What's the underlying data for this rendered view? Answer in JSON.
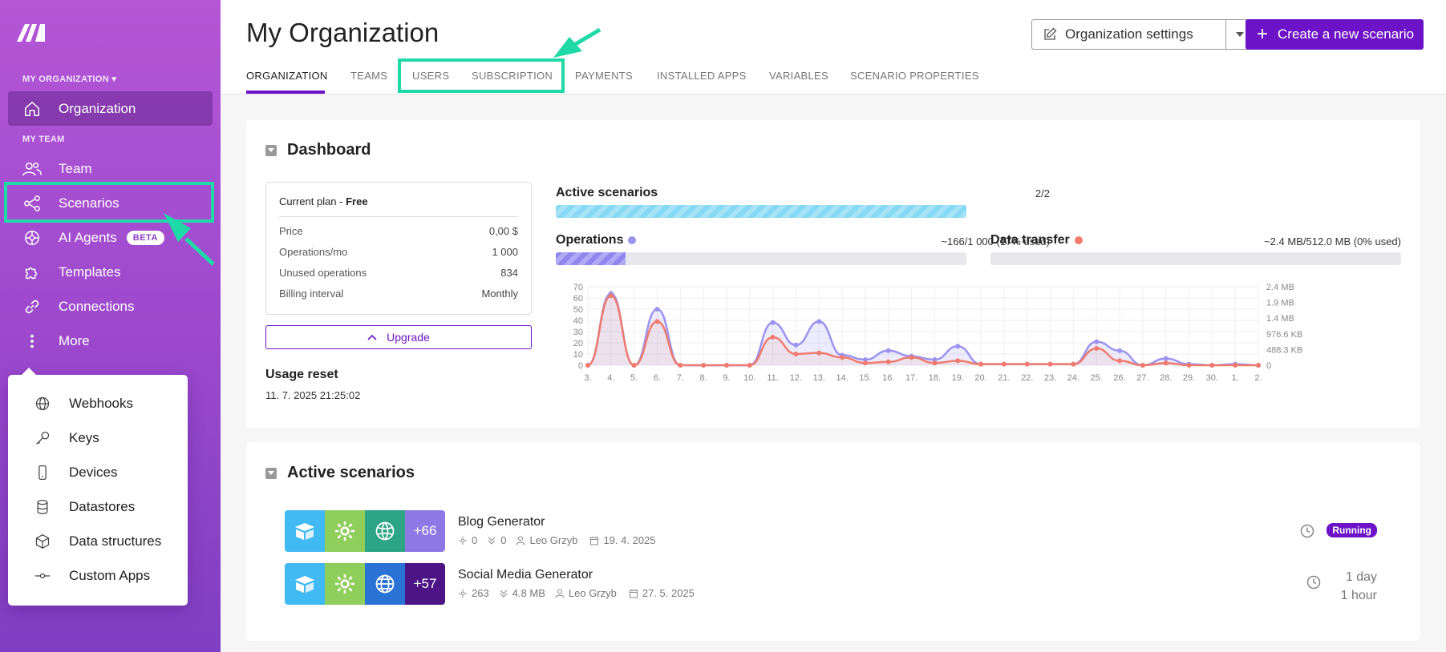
{
  "sidebar": {
    "org_label": "MY ORGANIZATION",
    "team_label": "MY TEAM",
    "items": [
      {
        "label": "Organization"
      },
      {
        "label": "Team"
      },
      {
        "label": "Scenarios"
      },
      {
        "label": "AI Agents",
        "badge": "BETA"
      },
      {
        "label": "Templates"
      },
      {
        "label": "Connections"
      },
      {
        "label": "More"
      }
    ],
    "more_menu": [
      {
        "label": "Webhooks"
      },
      {
        "label": "Keys"
      },
      {
        "label": "Devices"
      },
      {
        "label": "Datastores"
      },
      {
        "label": "Data structures"
      },
      {
        "label": "Custom Apps"
      }
    ]
  },
  "header": {
    "title": "My Organization",
    "settings_label": "Organization settings",
    "create_label": "Create a new scenario",
    "tabs": [
      "ORGANIZATION",
      "TEAMS",
      "USERS",
      "SUBSCRIPTION",
      "PAYMENTS",
      "INSTALLED APPS",
      "VARIABLES",
      "SCENARIO PROPERTIES"
    ]
  },
  "dashboard": {
    "title": "Dashboard",
    "plan": {
      "current_label": "Current plan - ",
      "current_value": "Free",
      "rows": [
        {
          "label": "Price",
          "value": "0,00 $"
        },
        {
          "label": "Operations/mo",
          "value": "1 000"
        },
        {
          "label": "Unused operations",
          "value": "834"
        },
        {
          "label": "Billing interval",
          "value": "Monthly"
        }
      ]
    },
    "upgrade_label": "Upgrade",
    "usage_reset_label": "Usage reset",
    "usage_reset_value": "11. 7. 2025 21:25:02",
    "active_scenarios": {
      "label": "Active scenarios",
      "value": "2/2",
      "fraction": 1.0
    },
    "operations": {
      "label": "Operations",
      "value": "~166/1 000 (17% used)",
      "fraction": 0.17
    },
    "data_transfer": {
      "label": "Data transfer",
      "value": "~2.4 MB/512.0 MB (0% used)",
      "fraction": 0.0
    },
    "colors": {
      "accent": "#6d13c7",
      "ops": "#9b93f0",
      "data": "#f07b6e",
      "active": "#7fd6f2"
    }
  },
  "chart_data": {
    "type": "line",
    "x": [
      "3.",
      "4.",
      "5.",
      "6.",
      "7.",
      "8.",
      "9.",
      "10.",
      "11.",
      "12.",
      "13.",
      "14.",
      "15.",
      "16.",
      "17.",
      "18.",
      "19.",
      "20.",
      "21.",
      "22.",
      "23.",
      "24.",
      "25.",
      "26.",
      "27.",
      "28.",
      "29.",
      "30.",
      "1.",
      "2."
    ],
    "y_left_ticks": [
      "70",
      "60",
      "50",
      "40",
      "30",
      "20",
      "10",
      "0"
    ],
    "y_right_ticks": [
      "2.4 MB",
      "1.9 MB",
      "1.4 MB",
      "976.6 KB",
      "488.3 KB",
      "0"
    ],
    "ylim": [
      0,
      70
    ],
    "series": [
      {
        "name": "Operations",
        "values": [
          0,
          64,
          0,
          50,
          0,
          0,
          0,
          0,
          38,
          18,
          39,
          9,
          5,
          13,
          8,
          5,
          17,
          1,
          1,
          1,
          1,
          1,
          21,
          13,
          0,
          6,
          1,
          0,
          1,
          0
        ]
      },
      {
        "name": "Data transfer",
        "values": [
          0,
          62,
          0,
          39,
          0,
          0,
          0,
          0,
          25,
          10,
          11,
          7,
          2,
          3,
          7,
          2,
          4,
          1,
          1,
          1,
          1,
          1,
          15,
          4,
          0,
          2,
          0,
          0,
          0,
          0
        ]
      }
    ]
  },
  "active_section": {
    "title": "Active scenarios",
    "scenarios": [
      {
        "name": "Blog Generator",
        "more_count": "+66",
        "ops": "0",
        "data": "0",
        "owner": "Leo Grzyb",
        "date": "19. 4. 2025",
        "status": "Running"
      },
      {
        "name": "Social Media Generator",
        "more_count": "+57",
        "ops": "263",
        "data": "4.8 MB",
        "owner": "Leo Grzyb",
        "date": "27. 5. 2025",
        "sched_1": "1 day",
        "sched_2": "1 hour"
      }
    ]
  }
}
